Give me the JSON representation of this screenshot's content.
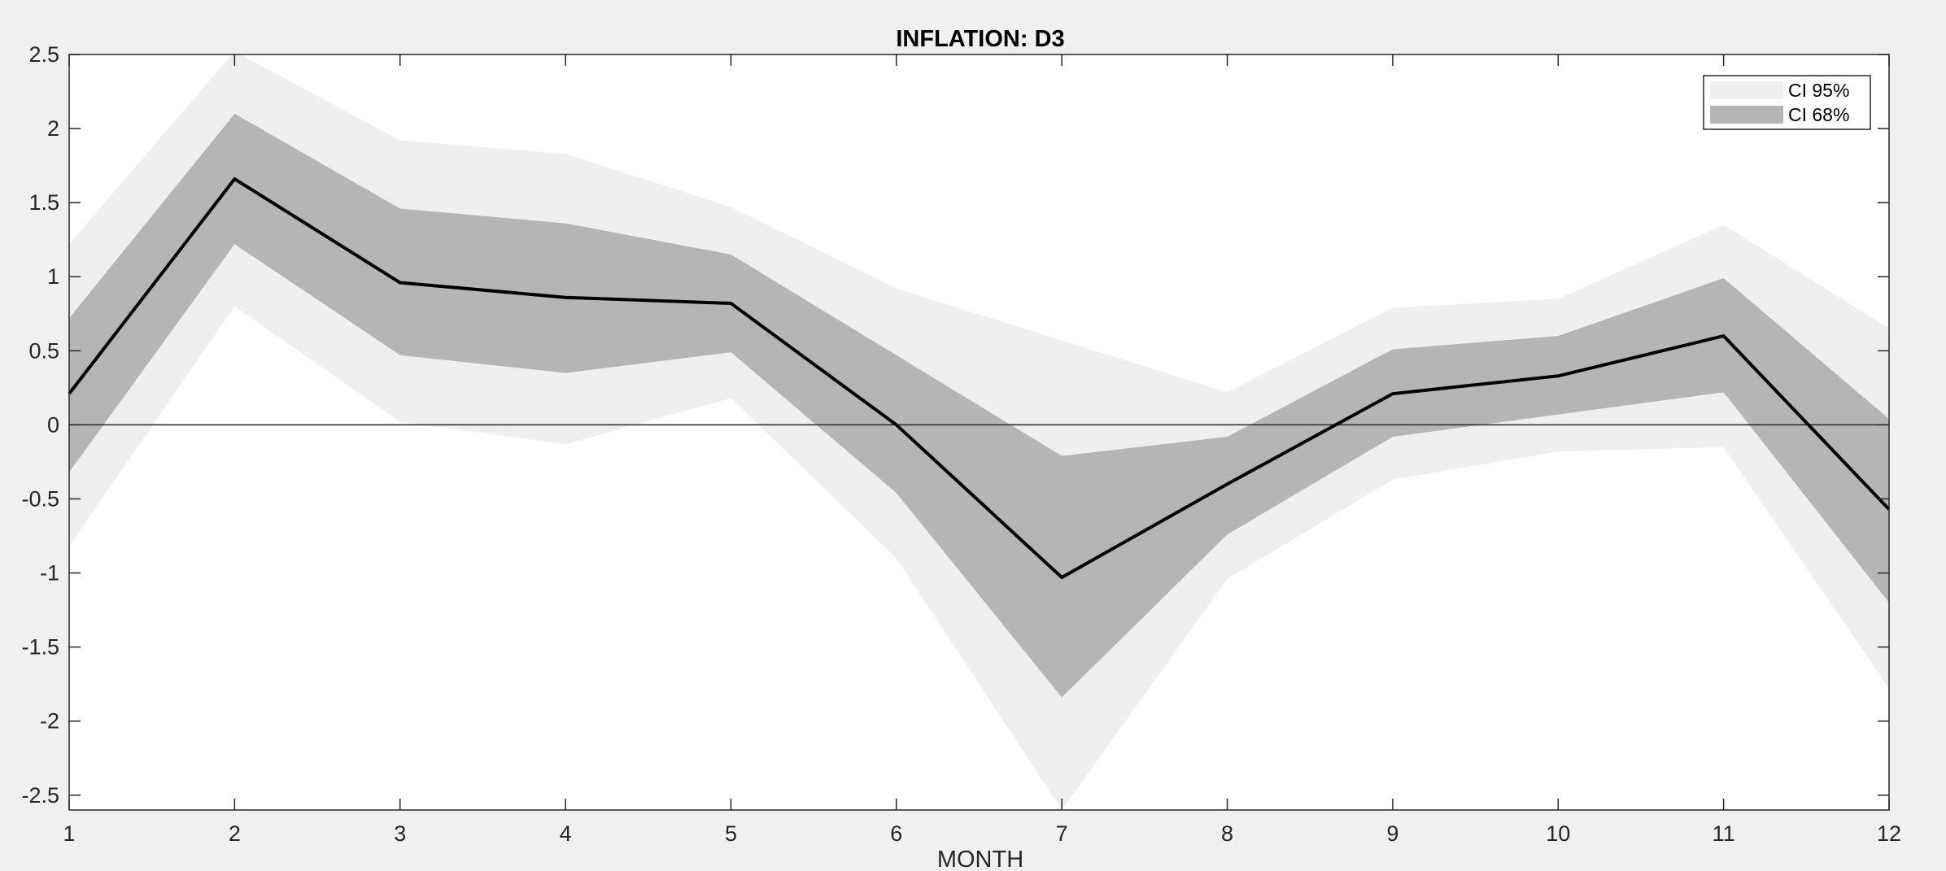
{
  "chart_data": {
    "type": "area",
    "title": "INFLATION: D3",
    "xlabel": "MONTH",
    "ylabel": "",
    "x": [
      1,
      2,
      3,
      4,
      5,
      6,
      7,
      8,
      9,
      10,
      11,
      12
    ],
    "xlim": [
      1,
      12
    ],
    "ylim": [
      -2.6,
      2.5
    ],
    "yticks": [
      -2.5,
      -2,
      -1.5,
      -1,
      -0.5,
      0,
      0.5,
      1,
      1.5,
      2,
      2.5
    ],
    "ytick_labels": [
      "-2.5",
      "-2",
      "-1.5",
      "-1",
      "-0.5",
      "0",
      "0.5",
      "1",
      "1.5",
      "2",
      "2.5"
    ],
    "xtick_labels": [
      "1",
      "2",
      "3",
      "4",
      "5",
      "6",
      "7",
      "8",
      "9",
      "10",
      "11",
      "12"
    ],
    "grid": false,
    "legend_position": "top-right",
    "bands": [
      {
        "name": "CI 95%",
        "color": "#efefef",
        "upper": [
          1.22,
          2.52,
          1.92,
          1.83,
          1.47,
          0.92,
          0.57,
          0.22,
          0.79,
          0.85,
          1.35,
          0.65
        ],
        "lower": [
          -0.82,
          0.8,
          0.02,
          -0.13,
          0.18,
          -0.9,
          -2.6,
          -1.04,
          -0.37,
          -0.18,
          -0.15,
          -1.78
        ]
      },
      {
        "name": "CI 68%",
        "color": "#b5b5b5",
        "upper": [
          0.72,
          2.1,
          1.46,
          1.36,
          1.15,
          0.47,
          -0.21,
          -0.08,
          0.51,
          0.6,
          0.99,
          0.04
        ],
        "lower": [
          -0.32,
          1.22,
          0.47,
          0.35,
          0.49,
          -0.46,
          -1.84,
          -0.74,
          -0.08,
          0.07,
          0.22,
          -1.2
        ]
      }
    ],
    "series": [
      {
        "values": [
          0.21,
          1.66,
          0.96,
          0.86,
          0.82,
          0.0,
          -1.03,
          -0.4,
          0.21,
          0.33,
          0.6,
          -0.57
        ],
        "color": "#000000"
      }
    ],
    "zero_line": 0,
    "colors": {
      "background": "#f0f0f0",
      "plot_area": "#ffffff",
      "axis": "#262626"
    }
  }
}
